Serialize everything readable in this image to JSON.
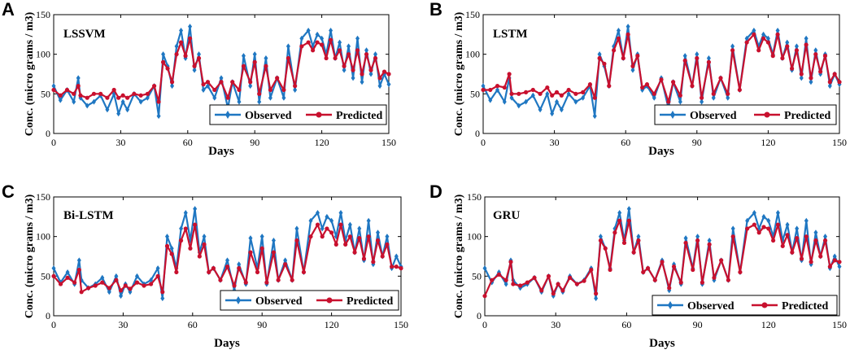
{
  "colors": {
    "observed": "#1f77c2",
    "predicted": "#c8102e"
  },
  "chart_data": [
    {
      "type": "line",
      "panel": "A",
      "title": "LSSVM",
      "xlabel": "Days",
      "ylabel": "Conc. (micro grams / m3)",
      "xlim": [
        0,
        150
      ],
      "ylim": [
        0,
        150
      ],
      "xticks": [
        "0",
        "30",
        "60",
        "90",
        "120",
        "150"
      ],
      "yticks": [
        "0",
        "50",
        "100",
        "150"
      ],
      "legend": "bottom-right",
      "series": [
        {
          "name": "Observed",
          "x": [
            0,
            3,
            6,
            9,
            11,
            12,
            15,
            18,
            21,
            24,
            27,
            29,
            31,
            33,
            36,
            39,
            42,
            45,
            47,
            49,
            51,
            53,
            55,
            57,
            59,
            61,
            63,
            65,
            67,
            69,
            72,
            75,
            78,
            80,
            83,
            85,
            88,
            90,
            92,
            95,
            97,
            100,
            103,
            105,
            108,
            111,
            114,
            116,
            118,
            120,
            122,
            124,
            126,
            128,
            130,
            132,
            134,
            136,
            138,
            140,
            142,
            144,
            146,
            148,
            150
          ],
          "values": [
            60,
            42,
            55,
            40,
            70,
            45,
            35,
            40,
            48,
            30,
            50,
            25,
            40,
            30,
            50,
            40,
            45,
            60,
            22,
            100,
            85,
            60,
            110,
            130,
            95,
            135,
            80,
            100,
            55,
            60,
            45,
            70,
            32,
            65,
            40,
            98,
            60,
            100,
            40,
            95,
            45,
            70,
            45,
            110,
            55,
            120,
            130,
            110,
            125,
            120,
            100,
            130,
            95,
            115,
            80,
            110,
            70,
            120,
            65,
            105,
            75,
            100,
            60,
            75,
            62
          ]
        },
        {
          "name": "Predicted",
          "x": [
            0,
            3,
            6,
            9,
            11,
            12,
            15,
            18,
            21,
            24,
            27,
            29,
            31,
            33,
            36,
            39,
            42,
            45,
            47,
            49,
            51,
            53,
            55,
            57,
            59,
            61,
            63,
            65,
            67,
            69,
            72,
            75,
            78,
            80,
            83,
            85,
            88,
            90,
            92,
            95,
            97,
            100,
            103,
            105,
            108,
            111,
            114,
            116,
            118,
            120,
            122,
            124,
            126,
            128,
            130,
            132,
            134,
            136,
            138,
            140,
            142,
            144,
            146,
            148,
            150
          ],
          "values": [
            55,
            48,
            55,
            50,
            60,
            48,
            45,
            50,
            50,
            45,
            55,
            45,
            48,
            45,
            50,
            48,
            50,
            60,
            40,
            90,
            82,
            65,
            100,
            115,
            98,
            120,
            85,
            95,
            62,
            65,
            55,
            65,
            45,
            65,
            55,
            85,
            65,
            90,
            50,
            85,
            55,
            70,
            55,
            95,
            60,
            110,
            115,
            105,
            115,
            112,
            95,
            118,
            95,
            105,
            85,
            100,
            80,
            105,
            75,
            100,
            80,
            95,
            70,
            78,
            75
          ]
        }
      ]
    },
    {
      "type": "line",
      "panel": "B",
      "title": "LSTM",
      "xlabel": "Days",
      "ylabel": "Conc. (micro grams / m3)",
      "xlim": [
        0,
        150
      ],
      "ylim": [
        0,
        150
      ],
      "xticks": [
        "0",
        "30",
        "60",
        "90",
        "120",
        "150"
      ],
      "yticks": [
        "0",
        "50",
        "100",
        "150"
      ],
      "legend": "bottom-right",
      "series": [
        {
          "name": "Observed",
          "x": [
            0,
            3,
            6,
            9,
            11,
            12,
            15,
            18,
            21,
            24,
            27,
            29,
            31,
            33,
            36,
            39,
            42,
            45,
            47,
            49,
            51,
            53,
            55,
            57,
            59,
            61,
            63,
            65,
            67,
            69,
            72,
            75,
            78,
            80,
            83,
            85,
            88,
            90,
            92,
            95,
            97,
            100,
            103,
            105,
            108,
            111,
            114,
            116,
            118,
            120,
            122,
            124,
            126,
            128,
            130,
            132,
            134,
            136,
            138,
            140,
            142,
            144,
            146,
            148,
            150
          ],
          "values": [
            60,
            42,
            55,
            40,
            70,
            45,
            35,
            40,
            48,
            30,
            50,
            25,
            40,
            30,
            50,
            40,
            45,
            60,
            22,
            100,
            85,
            60,
            110,
            130,
            95,
            135,
            80,
            100,
            55,
            60,
            45,
            70,
            32,
            65,
            40,
            98,
            60,
            100,
            40,
            95,
            45,
            70,
            45,
            110,
            55,
            120,
            130,
            110,
            125,
            120,
            100,
            130,
            95,
            115,
            80,
            110,
            70,
            120,
            65,
            105,
            75,
            100,
            60,
            75,
            62
          ]
        },
        {
          "name": "Predicted",
          "x": [
            0,
            3,
            6,
            9,
            11,
            12,
            15,
            18,
            21,
            24,
            27,
            29,
            31,
            33,
            36,
            39,
            42,
            45,
            47,
            49,
            51,
            53,
            55,
            57,
            59,
            61,
            63,
            65,
            67,
            69,
            72,
            75,
            78,
            80,
            83,
            85,
            88,
            90,
            92,
            95,
            97,
            100,
            103,
            105,
            108,
            111,
            114,
            116,
            118,
            120,
            122,
            124,
            126,
            128,
            130,
            132,
            134,
            136,
            138,
            140,
            142,
            144,
            146,
            148,
            150
          ],
          "values": [
            55,
            55,
            60,
            58,
            75,
            50,
            50,
            52,
            55,
            50,
            58,
            48,
            52,
            48,
            55,
            50,
            52,
            62,
            45,
            95,
            88,
            60,
            105,
            120,
            95,
            125,
            85,
            98,
            58,
            62,
            50,
            68,
            40,
            65,
            48,
            92,
            60,
            95,
            45,
            90,
            50,
            70,
            50,
            105,
            55,
            115,
            125,
            105,
            120,
            115,
            98,
            125,
            95,
            110,
            82,
            105,
            75,
            112,
            70,
            100,
            78,
            98,
            65,
            75,
            65
          ]
        }
      ]
    },
    {
      "type": "line",
      "panel": "C",
      "title": "Bi-LSTM",
      "xlabel": "Days",
      "ylabel": "Conc. (micro grams / m3)",
      "xlim": [
        0,
        150
      ],
      "ylim": [
        0,
        150
      ],
      "xticks": [
        "0",
        "30",
        "60",
        "90",
        "120",
        "150"
      ],
      "yticks": [
        "0",
        "50",
        "100",
        "150"
      ],
      "legend": "bottom-right",
      "series": [
        {
          "name": "Observed",
          "x": [
            0,
            3,
            6,
            9,
            11,
            12,
            15,
            18,
            21,
            24,
            27,
            29,
            31,
            33,
            36,
            39,
            42,
            45,
            47,
            49,
            51,
            53,
            55,
            57,
            59,
            61,
            63,
            65,
            67,
            69,
            72,
            75,
            78,
            80,
            83,
            85,
            88,
            90,
            92,
            95,
            97,
            100,
            103,
            105,
            108,
            111,
            114,
            116,
            118,
            120,
            122,
            124,
            126,
            128,
            130,
            132,
            134,
            136,
            138,
            140,
            142,
            144,
            146,
            148,
            150
          ],
          "values": [
            60,
            42,
            55,
            40,
            70,
            45,
            35,
            40,
            48,
            30,
            50,
            25,
            40,
            30,
            50,
            40,
            45,
            60,
            22,
            100,
            85,
            60,
            110,
            130,
            95,
            135,
            80,
            100,
            55,
            60,
            45,
            70,
            32,
            65,
            40,
            98,
            60,
            100,
            40,
            95,
            45,
            70,
            45,
            110,
            55,
            120,
            130,
            110,
            125,
            120,
            100,
            130,
            95,
            115,
            80,
            110,
            70,
            120,
            65,
            105,
            75,
            100,
            60,
            75,
            62
          ]
        },
        {
          "name": "Predicted",
          "x": [
            0,
            3,
            6,
            9,
            11,
            12,
            15,
            18,
            21,
            24,
            27,
            29,
            31,
            33,
            36,
            39,
            42,
            45,
            47,
            49,
            51,
            53,
            55,
            57,
            59,
            61,
            63,
            65,
            67,
            69,
            72,
            75,
            78,
            80,
            83,
            85,
            88,
            90,
            92,
            95,
            97,
            100,
            103,
            105,
            108,
            111,
            114,
            116,
            118,
            120,
            122,
            124,
            126,
            128,
            130,
            132,
            134,
            136,
            138,
            140,
            142,
            144,
            146,
            148,
            150
          ],
          "values": [
            50,
            40,
            48,
            42,
            58,
            30,
            35,
            38,
            42,
            35,
            45,
            32,
            38,
            34,
            42,
            38,
            40,
            50,
            30,
            88,
            78,
            55,
            95,
            110,
            85,
            115,
            75,
            90,
            55,
            60,
            45,
            62,
            38,
            60,
            42,
            80,
            55,
            85,
            42,
            80,
            45,
            65,
            45,
            95,
            55,
            100,
            115,
            100,
            110,
            105,
            90,
            115,
            90,
            100,
            80,
            98,
            72,
            100,
            68,
            95,
            75,
            90,
            62,
            62,
            60
          ]
        }
      ]
    },
    {
      "type": "line",
      "panel": "D",
      "title": "GRU",
      "xlabel": "Days",
      "ylabel": "Conc. (micro grams / m3)",
      "xlim": [
        0,
        150
      ],
      "ylim": [
        0,
        150
      ],
      "xticks": [
        "0",
        "30",
        "60",
        "90",
        "120",
        "150"
      ],
      "yticks": [
        "0",
        "50",
        "100",
        "150"
      ],
      "legend": "bottom-right",
      "series": [
        {
          "name": "Observed",
          "x": [
            0,
            3,
            6,
            9,
            11,
            12,
            15,
            18,
            21,
            24,
            27,
            29,
            31,
            33,
            36,
            39,
            42,
            45,
            47,
            49,
            51,
            53,
            55,
            57,
            59,
            61,
            63,
            65,
            67,
            69,
            72,
            75,
            78,
            80,
            83,
            85,
            88,
            90,
            92,
            95,
            97,
            100,
            103,
            105,
            108,
            111,
            114,
            116,
            118,
            120,
            122,
            124,
            126,
            128,
            130,
            132,
            134,
            136,
            138,
            140,
            142,
            144,
            146,
            148,
            150
          ],
          "values": [
            60,
            42,
            55,
            40,
            70,
            45,
            35,
            40,
            48,
            30,
            50,
            25,
            40,
            30,
            50,
            40,
            45,
            60,
            22,
            100,
            85,
            60,
            110,
            130,
            95,
            135,
            80,
            100,
            55,
            60,
            45,
            70,
            32,
            65,
            40,
            98,
            60,
            100,
            40,
            95,
            45,
            70,
            45,
            110,
            55,
            120,
            130,
            110,
            125,
            120,
            100,
            130,
            95,
            115,
            80,
            110,
            70,
            120,
            65,
            105,
            75,
            100,
            60,
            75,
            62
          ]
        },
        {
          "name": "Predicted",
          "x": [
            0,
            3,
            6,
            9,
            11,
            12,
            15,
            18,
            21,
            24,
            27,
            29,
            31,
            33,
            36,
            39,
            42,
            45,
            47,
            49,
            51,
            53,
            55,
            57,
            59,
            61,
            63,
            65,
            67,
            69,
            72,
            75,
            78,
            80,
            83,
            85,
            88,
            90,
            92,
            95,
            97,
            100,
            103,
            105,
            108,
            111,
            114,
            116,
            118,
            120,
            122,
            124,
            126,
            128,
            130,
            132,
            134,
            136,
            138,
            140,
            142,
            144,
            146,
            148,
            150
          ],
          "values": [
            25,
            45,
            52,
            45,
            68,
            40,
            38,
            42,
            48,
            32,
            50,
            28,
            40,
            32,
            48,
            40,
            44,
            58,
            28,
            95,
            85,
            58,
            105,
            120,
            92,
            120,
            80,
            95,
            55,
            60,
            45,
            68,
            35,
            62,
            42,
            92,
            58,
            95,
            42,
            90,
            48,
            70,
            45,
            100,
            55,
            110,
            115,
            105,
            112,
            110,
            95,
            115,
            88,
            102,
            80,
            98,
            72,
            100,
            68,
            95,
            75,
            95,
            62,
            70,
            68
          ]
        }
      ]
    }
  ],
  "legend_labels": {
    "observed": "Observed",
    "predicted": "Predicted"
  }
}
